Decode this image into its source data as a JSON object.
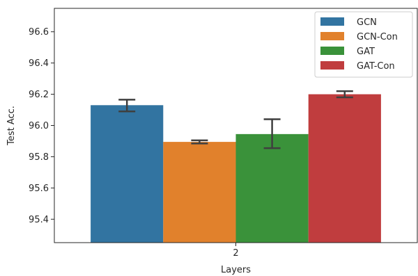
{
  "chart_data": {
    "type": "bar",
    "title": "",
    "xlabel": "Layers",
    "ylabel": "Test Acc.",
    "categories": [
      "2"
    ],
    "ylim": [
      95.25,
      96.75
    ],
    "yticks": [
      "95.4",
      "95.6",
      "95.8",
      "96.0",
      "96.2",
      "96.4",
      "96.6"
    ],
    "grid": false,
    "legend_position": "top-right",
    "series": [
      {
        "name": "GCN",
        "values": [
          96.13
        ],
        "err_low": [
          96.09
        ],
        "err_high": [
          96.165
        ],
        "color": "#3274a1"
      },
      {
        "name": "GCN-Con",
        "values": [
          95.895
        ],
        "err_low": [
          95.885
        ],
        "err_high": [
          95.905
        ],
        "color": "#e1812c"
      },
      {
        "name": "GAT",
        "values": [
          95.945
        ],
        "err_low": [
          95.855
        ],
        "err_high": [
          96.04
        ],
        "color": "#3a923a"
      },
      {
        "name": "GAT-Con",
        "values": [
          96.2
        ],
        "err_low": [
          96.18
        ],
        "err_high": [
          96.22
        ],
        "color": "#c03d3e"
      }
    ],
    "errorbar_color": "#3f3f3f"
  }
}
